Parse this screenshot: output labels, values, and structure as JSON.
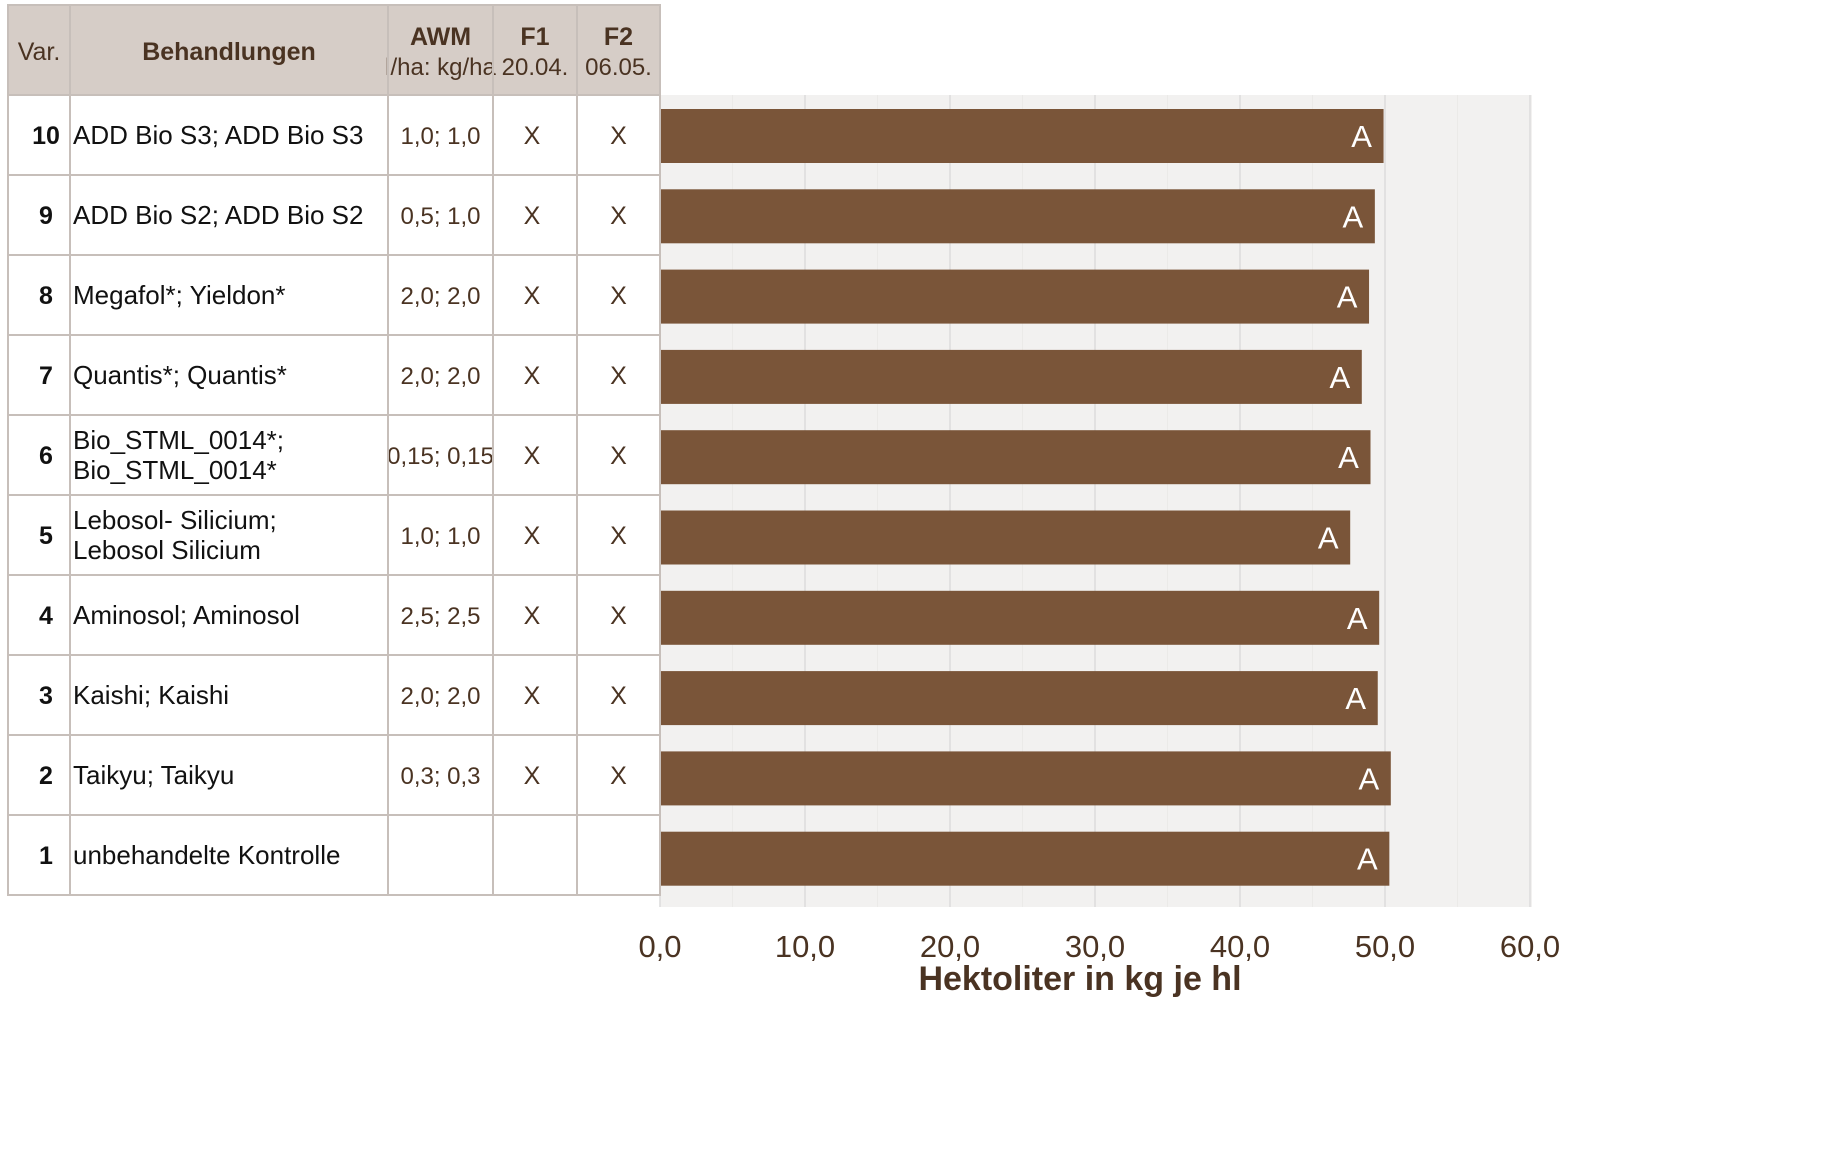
{
  "table": {
    "headers": {
      "var": "Var.",
      "treatment": "Behandlungen",
      "awm_title": "AWM",
      "awm_unit": "l/ha: kg/ha",
      "f1_title": "F1",
      "f1_date": "20.04.",
      "f2_title": "F2",
      "f2_date": "06.05."
    },
    "rows": [
      {
        "var": "10",
        "treatment": [
          "ADD Bio S3; ADD Bio S3"
        ],
        "awm": "1,0; 1,0",
        "f1": "X",
        "f2": "X"
      },
      {
        "var": "9",
        "treatment": [
          "ADD Bio S2; ADD Bio S2"
        ],
        "awm": "0,5; 1,0",
        "f1": "X",
        "f2": "X"
      },
      {
        "var": "8",
        "treatment": [
          "Megafol*; Yieldon*"
        ],
        "awm": "2,0; 2,0",
        "f1": "X",
        "f2": "X"
      },
      {
        "var": "7",
        "treatment": [
          "Quantis*; Quantis*"
        ],
        "awm": "2,0; 2,0",
        "f1": "X",
        "f2": "X"
      },
      {
        "var": "6",
        "treatment": [
          "Bio_STML_0014*;",
          "Bio_STML_0014*"
        ],
        "awm": "0,15; 0,15",
        "f1": "X",
        "f2": "X"
      },
      {
        "var": "5",
        "treatment": [
          "Lebosol- Silicium;",
          "Lebosol Silicium"
        ],
        "awm": "1,0; 1,0",
        "f1": "X",
        "f2": "X"
      },
      {
        "var": "4",
        "treatment": [
          "Aminosol; Aminosol"
        ],
        "awm": "2,5; 2,5",
        "f1": "X",
        "f2": "X"
      },
      {
        "var": "3",
        "treatment": [
          "Kaishi; Kaishi"
        ],
        "awm": "2,0; 2,0",
        "f1": "X",
        "f2": "X"
      },
      {
        "var": "2",
        "treatment": [
          "Taikyu; Taikyu"
        ],
        "awm": "0,3; 0,3",
        "f1": "X",
        "f2": "X"
      },
      {
        "var": "1",
        "treatment": [
          " unbehandelte Kontrolle"
        ],
        "awm": "",
        "f1": "",
        "f2": ""
      }
    ]
  },
  "chart_data": {
    "type": "bar",
    "orientation": "horizontal",
    "categories": [
      "10",
      "9",
      "8",
      "7",
      "6",
      "5",
      "4",
      "3",
      "2",
      "1"
    ],
    "values": [
      49.9,
      49.3,
      48.9,
      48.4,
      49.0,
      47.6,
      49.6,
      49.5,
      50.4,
      50.3
    ],
    "data_labels": [
      "A",
      "A",
      "A",
      "A",
      "A",
      "A",
      "A",
      "A",
      "A",
      "A"
    ],
    "xlabel": "Hektoliter in kg je hl",
    "xlim": [
      0,
      60
    ],
    "ticks": [
      "0,0",
      "10,0",
      "20,0",
      "30,0",
      "40,0",
      "50,0",
      "60,0"
    ],
    "grid": true,
    "colors": {
      "bar": "#7a5539",
      "plot_background": "#f2f1f0",
      "header_background": "#d6cdc7",
      "grid": "#dcdcdc",
      "axis_text": "#4a3322"
    }
  }
}
